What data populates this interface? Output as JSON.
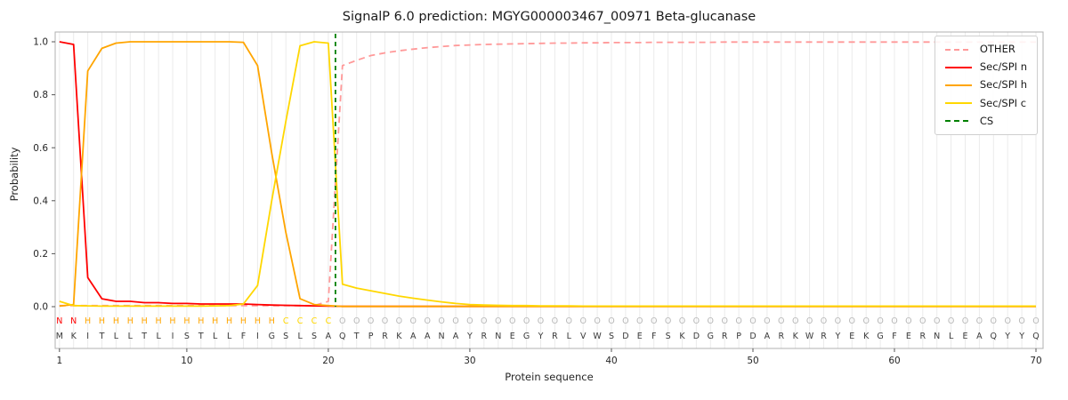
{
  "figure": {
    "title": "SignalP 6.0 prediction: MGYG000003467_00971 Beta-glucanase"
  },
  "chart_data": {
    "type": "line",
    "title": "SignalP 6.0 prediction: MGYG000003467_00971 Beta-glucanase",
    "xlabel": "Protein sequence",
    "ylabel": "Probability",
    "xlim": [
      0.7,
      70.5
    ],
    "ylim": [
      -0.16,
      1.04
    ],
    "xticks": [
      1,
      10,
      20,
      30,
      40,
      50,
      60,
      70
    ],
    "yticks": [
      0.0,
      0.2,
      0.4,
      0.6,
      0.8,
      1.0
    ],
    "grid": "faint vertical gridline at every residue position",
    "x_start": 1,
    "sequence": "MKITLLTLISTLLFIGSLSAQTPRKAANAYRNEGYRLVWSDEFSKDGRPDARKWRYEKGFERNLEAQYYQ",
    "region_labels": "NNHHHHHHHHHHHHHHCCCCOOOOOOOOOOOOOOOOOOOOOOOOOOOOOOOOOOOOOOOOOOOOOOOOOO",
    "label_colors": {
      "N": "#ff0000",
      "H": "#ffa500",
      "C": "#ffd700",
      "O": "#b8b8b8"
    },
    "sequence_color": "#3a3a3a",
    "cs": {
      "label": "CS",
      "position": 20.5,
      "color": "#008000"
    },
    "series": [
      {
        "id": "other",
        "name": "OTHER",
        "color": "#ff9999",
        "dashed": true,
        "values": [
          0.004,
          0.004,
          0.004,
          0.004,
          0.004,
          0.004,
          0.004,
          0.004,
          0.004,
          0.004,
          0.004,
          0.004,
          0.004,
          0.004,
          0.004,
          0.004,
          0.004,
          0.004,
          0.004,
          0.02,
          0.91,
          0.93,
          0.948,
          0.958,
          0.966,
          0.972,
          0.978,
          0.982,
          0.986,
          0.988,
          0.99,
          0.991,
          0.992,
          0.993,
          0.994,
          0.995,
          0.995,
          0.996,
          0.996,
          0.997,
          0.997,
          0.997,
          0.998,
          0.998,
          0.998,
          0.998,
          0.998,
          0.999,
          0.999,
          0.999,
          0.999,
          0.999,
          0.999,
          0.999,
          0.999,
          0.999,
          0.999,
          0.999,
          0.999,
          0.999,
          0.999,
          0.999,
          0.999,
          0.999,
          0.999,
          0.999,
          0.999,
          0.999,
          0.999,
          0.999
        ]
      },
      {
        "id": "sec-spi-n",
        "name": "Sec/SPI n",
        "color": "#ff0000",
        "dashed": false,
        "values": [
          1.0,
          0.99,
          0.11,
          0.03,
          0.02,
          0.02,
          0.015,
          0.015,
          0.012,
          0.012,
          0.01,
          0.01,
          0.01,
          0.01,
          0.008,
          0.006,
          0.005,
          0.004,
          0.003,
          0.002,
          0.001,
          0.001,
          0.001,
          0.001,
          0.001,
          0.001,
          0.001,
          0.001,
          0.001,
          0.001,
          0.001,
          0.001,
          0.001,
          0.001,
          0.001,
          0.001,
          0.001,
          0.001,
          0.001,
          0.001,
          0.001,
          0.001,
          0.001,
          0.001,
          0.001,
          0.001,
          0.001,
          0.001,
          0.001,
          0.001,
          0.001,
          0.001,
          0.001,
          0.001,
          0.001,
          0.001,
          0.001,
          0.001,
          0.001,
          0.001,
          0.001,
          0.001,
          0.001,
          0.001,
          0.001,
          0.001,
          0.001,
          0.001,
          0.001,
          0.001
        ]
      },
      {
        "id": "sec-spi-h",
        "name": "Sec/SPI h",
        "color": "#ffa500",
        "dashed": false,
        "values": [
          0.002,
          0.008,
          0.89,
          0.975,
          0.995,
          1.0,
          1.0,
          1.0,
          1.0,
          1.0,
          1.0,
          1.0,
          1.0,
          0.998,
          0.91,
          0.58,
          0.28,
          0.03,
          0.008,
          0.004,
          0.001,
          0.001,
          0.001,
          0.001,
          0.001,
          0.001,
          0.001,
          0.001,
          0.001,
          0.001,
          0.001,
          0.001,
          0.001,
          0.001,
          0.001,
          0.001,
          0.001,
          0.001,
          0.001,
          0.001,
          0.001,
          0.001,
          0.001,
          0.001,
          0.001,
          0.001,
          0.001,
          0.001,
          0.001,
          0.001,
          0.001,
          0.001,
          0.001,
          0.001,
          0.001,
          0.001,
          0.001,
          0.001,
          0.001,
          0.001,
          0.001,
          0.001,
          0.001,
          0.001,
          0.001,
          0.001,
          0.001,
          0.001,
          0.001,
          0.001
        ]
      },
      {
        "id": "sec-spi-c",
        "name": "Sec/SPI c",
        "color": "#ffd700",
        "dashed": false,
        "values": [
          0.02,
          0.004,
          0.003,
          0.002,
          0.002,
          0.002,
          0.002,
          0.002,
          0.002,
          0.002,
          0.002,
          0.003,
          0.004,
          0.01,
          0.08,
          0.4,
          0.7,
          0.985,
          1.0,
          0.995,
          0.085,
          0.07,
          0.06,
          0.05,
          0.04,
          0.032,
          0.025,
          0.018,
          0.012,
          0.008,
          0.006,
          0.005,
          0.004,
          0.004,
          0.003,
          0.003,
          0.003,
          0.002,
          0.002,
          0.002,
          0.002,
          0.002,
          0.002,
          0.002,
          0.002,
          0.002,
          0.002,
          0.002,
          0.002,
          0.002,
          0.002,
          0.002,
          0.002,
          0.002,
          0.002,
          0.002,
          0.002,
          0.002,
          0.002,
          0.002,
          0.002,
          0.002,
          0.002,
          0.002,
          0.002,
          0.002,
          0.002,
          0.002,
          0.002,
          0.002
        ]
      }
    ],
    "legend": {
      "position": "upper-right",
      "items": [
        {
          "label": "OTHER",
          "color": "#ff9999",
          "dashed": true
        },
        {
          "label": "Sec/SPI n",
          "color": "#ff0000",
          "dashed": false
        },
        {
          "label": "Sec/SPI h",
          "color": "#ffa500",
          "dashed": false
        },
        {
          "label": "Sec/SPI c",
          "color": "#ffd700",
          "dashed": false
        },
        {
          "label": "CS",
          "color": "#008000",
          "dashed": true
        }
      ]
    }
  }
}
